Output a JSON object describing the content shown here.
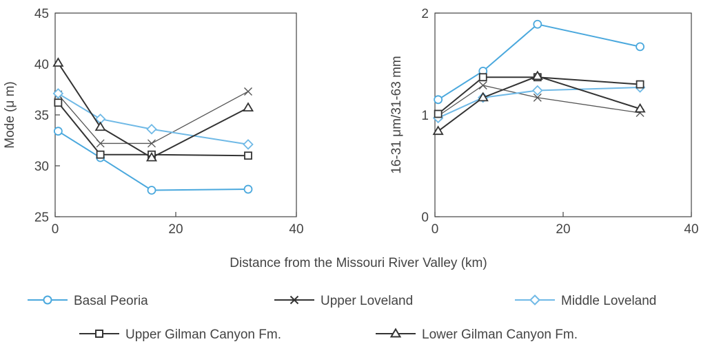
{
  "xlabel": "Distance from the Missouri River Valley (km)",
  "colors": {
    "blue": "#4aa8dd",
    "light_blue": "#6fb9e6",
    "dark": "#333333",
    "mid": "#555555",
    "axis": "#444444"
  },
  "legend": [
    {
      "label": "Basal Peoria",
      "marker": "circle",
      "color": "#4aa8dd",
      "icon": "circle-marker-icon"
    },
    {
      "label": "Upper Loveland",
      "marker": "x",
      "color": "#333333",
      "icon": "x-marker-icon"
    },
    {
      "label": "Middle Loveland",
      "marker": "diamond",
      "color": "#6fb9e6",
      "icon": "diamond-marker-icon"
    },
    {
      "label": "Upper Gilman Canyon Fm.",
      "marker": "square",
      "color": "#333333",
      "icon": "square-marker-icon"
    },
    {
      "label": "Lower Gilman Canyon Fm.",
      "marker": "triangle",
      "color": "#333333",
      "icon": "triangle-marker-icon"
    }
  ],
  "chart_data": [
    {
      "type": "line",
      "ylabel": "Mode (μ m)",
      "xlim": [
        0,
        40
      ],
      "ylim": [
        25,
        45
      ],
      "xticks": [
        0,
        20,
        40
      ],
      "yticks": [
        25,
        30,
        35,
        40,
        45
      ],
      "x": [
        0.5,
        7.5,
        16,
        32
      ],
      "grid": false,
      "series": [
        {
          "name": "Basal Peoria",
          "marker": "circle",
          "color": "#4aa8dd",
          "values": [
            33.4,
            30.8,
            27.6,
            27.7
          ]
        },
        {
          "name": "Upper Loveland",
          "marker": "x",
          "color": "#555555",
          "values": [
            37.0,
            32.2,
            32.2,
            37.3
          ]
        },
        {
          "name": "Middle Loveland",
          "marker": "diamond",
          "color": "#6fb9e6",
          "values": [
            37.1,
            34.6,
            33.6,
            32.1
          ]
        },
        {
          "name": "Upper Gilman Canyon Fm.",
          "marker": "square",
          "color": "#333333",
          "values": [
            36.2,
            31.1,
            31.1,
            31.0
          ]
        },
        {
          "name": "Lower Gilman Canyon Fm.",
          "marker": "triangle",
          "color": "#333333",
          "values": [
            40.1,
            33.8,
            30.8,
            35.7
          ]
        }
      ]
    },
    {
      "type": "line",
      "ylabel": "16-31 μm/31-63 mm",
      "xlim": [
        0,
        40
      ],
      "ylim": [
        0,
        2
      ],
      "xticks": [
        0,
        20,
        40
      ],
      "yticks": [
        0,
        1,
        2
      ],
      "x": [
        0.5,
        7.5,
        16,
        32
      ],
      "grid": false,
      "series": [
        {
          "name": "Basal Peoria",
          "marker": "circle",
          "color": "#4aa8dd",
          "values": [
            1.15,
            1.43,
            1.89,
            1.67
          ]
        },
        {
          "name": "Upper Loveland",
          "marker": "x",
          "color": "#555555",
          "values": [
            0.99,
            1.29,
            1.17,
            1.02
          ]
        },
        {
          "name": "Middle Loveland",
          "marker": "diamond",
          "color": "#6fb9e6",
          "values": [
            0.97,
            1.17,
            1.24,
            1.27
          ]
        },
        {
          "name": "Upper Gilman Canyon Fm.",
          "marker": "square",
          "color": "#333333",
          "values": [
            1.01,
            1.37,
            1.37,
            1.3
          ]
        },
        {
          "name": "Lower Gilman Canyon Fm.",
          "marker": "triangle",
          "color": "#333333",
          "values": [
            0.84,
            1.17,
            1.38,
            1.06
          ]
        }
      ]
    }
  ]
}
